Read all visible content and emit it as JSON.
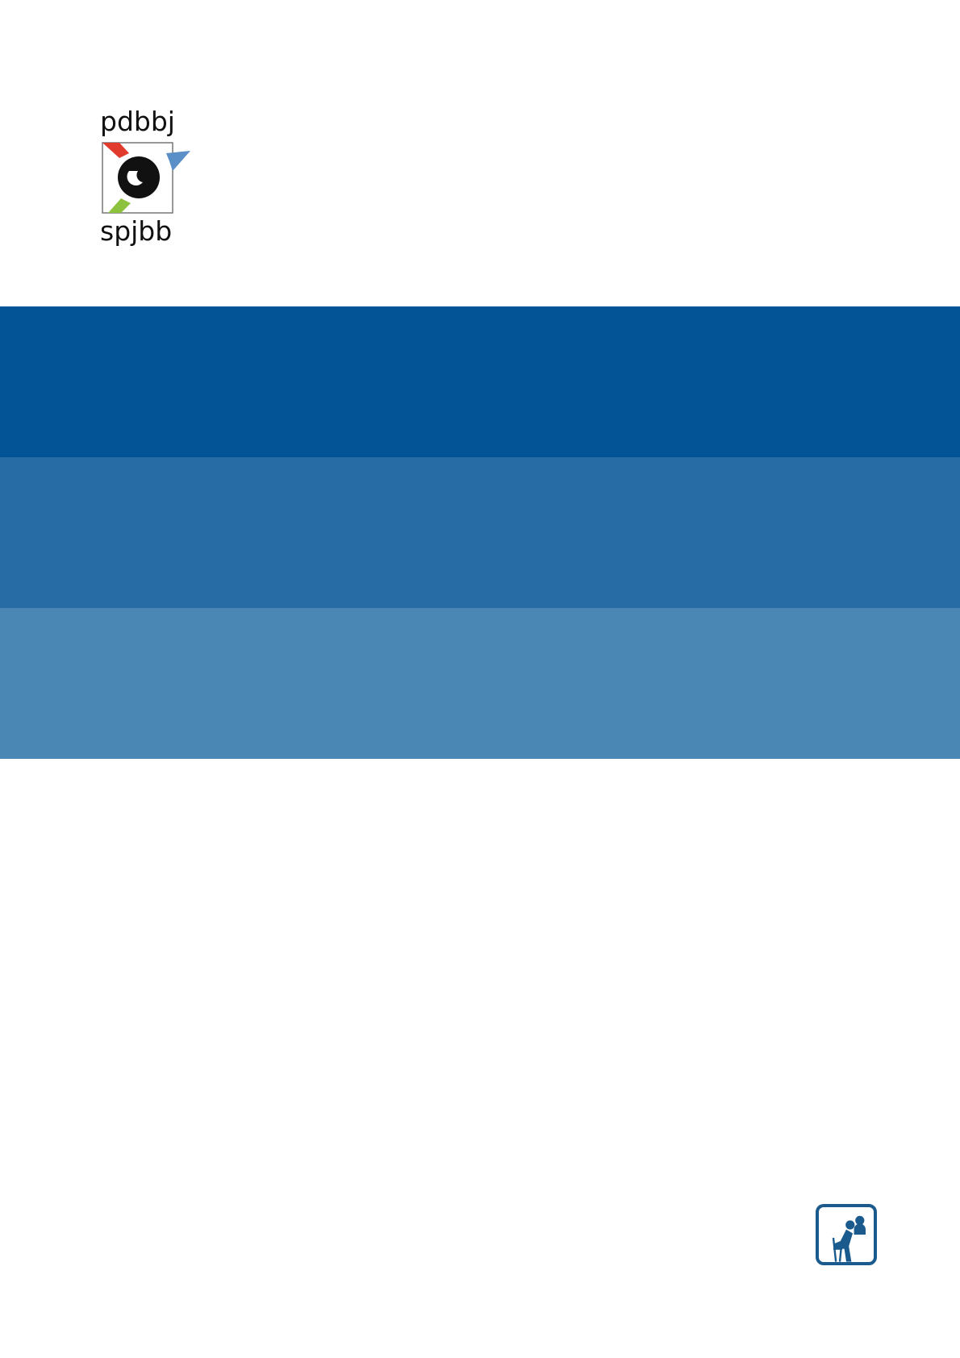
{
  "logo": {
    "top_text": "pdbbj",
    "bottom_text": "spjbb"
  },
  "colors": {
    "band_1": "#025496",
    "band_2": "#276ca4",
    "band_3": "#4b87b4",
    "logo_red": "#e03b2c",
    "logo_blue": "#5b8fc8",
    "logo_green": "#8dc23f",
    "icon": "#1b5a8c"
  },
  "icons": {
    "bottom_right": "person-seated-consultation-icon"
  }
}
